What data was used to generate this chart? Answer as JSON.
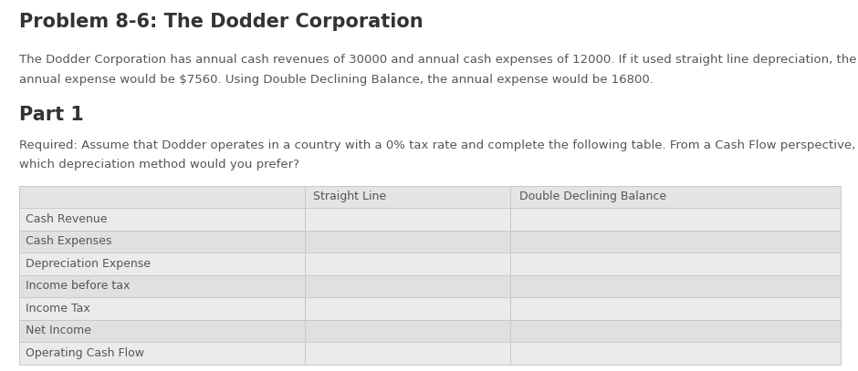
{
  "title": "Problem 8-6: The Dodder Corporation",
  "description_line1": "The Dodder Corporation has annual cash revenues of 30000 and annual cash expenses of 12000. If it used straight line depreciation, the",
  "description_line2": "annual expense would be $7560. Using Double Declining Balance, the annual expense would be 16800.",
  "part_label": "Part 1",
  "required_line1": "Required: Assume that Dodder operates in a country with a 0% tax rate and complete the following table. From a Cash Flow perspective,",
  "required_line2": "which depreciation method would you prefer?",
  "table_headers": [
    "",
    "Straight Line",
    "Double Declining Balance"
  ],
  "table_rows": [
    "Cash Revenue",
    "Cash Expenses",
    "Depreciation Expense",
    "Income before tax",
    "Income Tax",
    "Net Income",
    "Operating Cash Flow"
  ],
  "bg_color": "#ffffff",
  "table_header_bg": "#e4e4e4",
  "table_row_bg_light": "#ebebeb",
  "table_row_bg_dark": "#e0e0e0",
  "table_border_color": "#c8c8c8",
  "title_fontsize": 15,
  "body_fontsize": 9.5,
  "part_fontsize": 15,
  "table_fontsize": 9,
  "text_color": "#555555",
  "title_color": "#333333"
}
